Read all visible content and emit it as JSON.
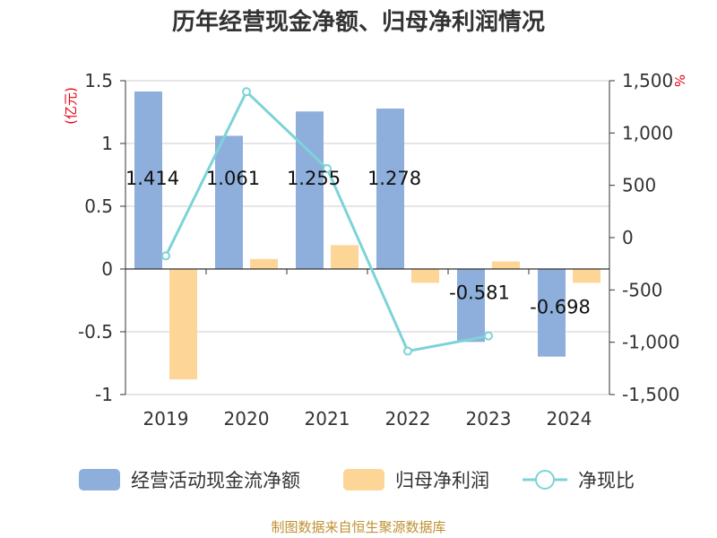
{
  "chart_data": {
    "type": "bar",
    "title": "历年经营现金净额、归母净利润情况",
    "categories": [
      "2019",
      "2020",
      "2021",
      "2022",
      "2023",
      "2024"
    ],
    "left_axis": {
      "unit_label": "(亿元)",
      "ylim": [
        -1,
        1.5
      ],
      "ticks": [
        1.5,
        1,
        0.5,
        0,
        -0.5,
        -1
      ],
      "tick_labels": [
        "1.5",
        "1",
        "0.5",
        "0",
        "-0.5",
        "-1"
      ]
    },
    "right_axis": {
      "unit_label": "%",
      "ylim": [
        -1500,
        1500
      ],
      "ticks": [
        1500,
        1000,
        500,
        0,
        -500,
        -1000,
        -1500
      ],
      "tick_labels": [
        "1,500",
        "1,000",
        "500",
        "0",
        "-500",
        "-1,000",
        "-1,500"
      ]
    },
    "series": [
      {
        "name": "经营活动现金流净额",
        "type": "bar",
        "axis": "left",
        "color": "#8eaedb",
        "values": [
          1.414,
          1.061,
          1.255,
          1.278,
          -0.581,
          -0.698
        ],
        "labels": [
          "1.414",
          "1.061",
          "1.255",
          "1.278",
          "-0.581",
          "-0.698"
        ]
      },
      {
        "name": "归母净利润",
        "type": "bar",
        "axis": "left",
        "color": "#fdd697",
        "values": [
          -0.88,
          0.08,
          0.19,
          -0.11,
          0.06,
          -0.11
        ]
      },
      {
        "name": "净现比",
        "type": "line",
        "axis": "right",
        "color": "#7dd3d8",
        "values": [
          -175,
          1395,
          660,
          -1085,
          -940,
          null
        ]
      }
    ],
    "grid": true,
    "legend_position": "bottom"
  },
  "source_text": "制图数据来自恒生聚源数据库"
}
